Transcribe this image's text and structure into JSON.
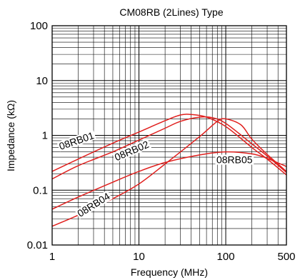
{
  "chart_data": {
    "type": "line",
    "title": "CM08RB (2Lines) Type",
    "xlabel": "Frequency (MHz)",
    "ylabel": "Impedance (kΩ)",
    "x_scale": "log",
    "y_scale": "log",
    "xlim": [
      1,
      500
    ],
    "ylim": [
      0.01,
      100
    ],
    "x_ticks": [
      {
        "v": 1,
        "label": "1"
      },
      {
        "v": 10,
        "label": "10"
      },
      {
        "v": 100,
        "label": "100"
      },
      {
        "v": 500,
        "label": "500"
      }
    ],
    "y_ticks": [
      {
        "v": 0.01,
        "label": "0.01"
      },
      {
        "v": 0.1,
        "label": "0.1"
      },
      {
        "v": 1,
        "label": "1"
      },
      {
        "v": 10,
        "label": "10"
      },
      {
        "v": 100,
        "label": "100"
      }
    ],
    "grid": true,
    "line_color": "#e0201e",
    "series": [
      {
        "name": "08RB01",
        "x": [
          1,
          2,
          5,
          10,
          20,
          30,
          40,
          60,
          100,
          200,
          300,
          500
        ],
        "y": [
          0.22,
          0.37,
          0.72,
          1.15,
          1.85,
          2.35,
          2.4,
          2.15,
          1.45,
          0.6,
          0.37,
          0.19
        ]
      },
      {
        "name": "08RB02",
        "x": [
          1,
          2,
          5,
          10,
          20,
          30,
          50,
          70,
          100,
          200,
          300,
          500
        ],
        "y": [
          0.16,
          0.28,
          0.5,
          0.82,
          1.35,
          1.8,
          2.15,
          2.1,
          1.65,
          0.7,
          0.42,
          0.21
        ]
      },
      {
        "name": "08RB04",
        "x": [
          1,
          2,
          5,
          10,
          20,
          50,
          80,
          100,
          150,
          200,
          300,
          500
        ],
        "y": [
          0.022,
          0.035,
          0.07,
          0.13,
          0.3,
          0.95,
          1.8,
          2.0,
          1.55,
          0.85,
          0.45,
          0.22
        ]
      },
      {
        "name": "08RB05",
        "x": [
          1,
          2,
          5,
          10,
          20,
          50,
          100,
          200,
          300,
          500
        ],
        "y": [
          0.045,
          0.075,
          0.14,
          0.22,
          0.32,
          0.44,
          0.5,
          0.46,
          0.38,
          0.27
        ]
      }
    ],
    "labels": [
      {
        "text": "08RB01",
        "series": "08RB01",
        "x": 1.25,
        "y": 0.54,
        "angle": -19
      },
      {
        "text": "08RB02",
        "series": "08RB02",
        "x": 5.5,
        "y": 0.34,
        "angle": -23
      },
      {
        "text": "08RB04",
        "series": "08RB04",
        "x": 2.1,
        "y": 0.032,
        "angle": -32
      },
      {
        "text": "08RB05",
        "series": "08RB05",
        "x": 78,
        "y": 0.31,
        "angle": 0
      }
    ]
  }
}
